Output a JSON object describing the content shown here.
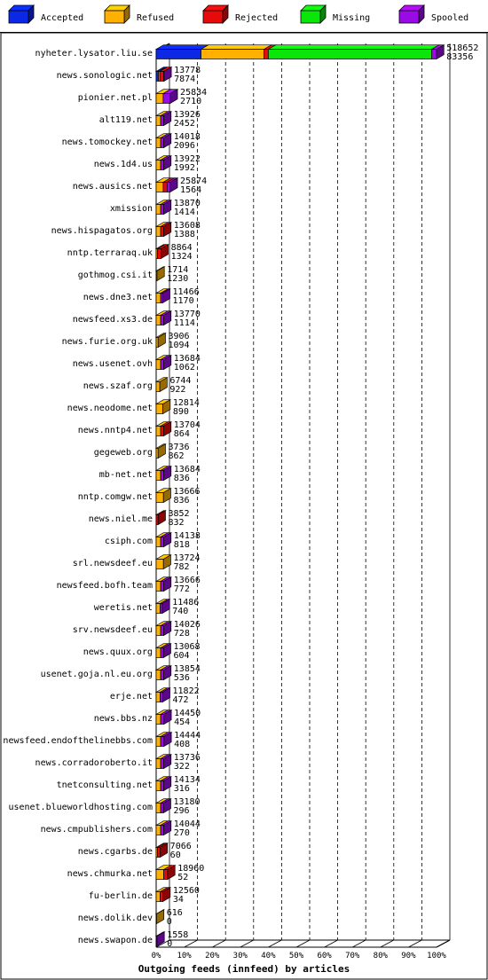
{
  "chart_data": {
    "type": "bar",
    "orientation": "horizontal-stacked",
    "title": "",
    "xlabel": "Outgoing feeds (innfeed) by articles",
    "ylabel": "",
    "xticks": [
      "0%",
      "10%",
      "20%",
      "30%",
      "40%",
      "50%",
      "60%",
      "70%",
      "80%",
      "90%",
      "100%"
    ],
    "xlim": [
      0,
      100
    ],
    "legend_position": "top",
    "grid": true,
    "series": [
      {
        "name": "Accepted",
        "color": "#0a28e6"
      },
      {
        "name": "Refused",
        "color": "#ffb000"
      },
      {
        "name": "Rejected",
        "color": "#e60a0a"
      },
      {
        "name": "Missing",
        "color": "#0ae60a"
      },
      {
        "name": "Spooled",
        "color": "#9a0ae6"
      }
    ],
    "rows": [
      {
        "label": "nyheter.lysator.liu.se",
        "total": "518652",
        "accepted": "83356",
        "pct": [
          16,
          22.5,
          1.5,
          58.3,
          1.7
        ]
      },
      {
        "label": "news.sonologic.net",
        "total": "13778",
        "accepted": "7874",
        "pct": [
          0.8,
          0.5,
          1.4,
          0,
          0.1
        ]
      },
      {
        "label": "pionier.net.pl",
        "total": "25834",
        "accepted": "2710",
        "pct": [
          0,
          2.5,
          0,
          0,
          2.5
        ]
      },
      {
        "label": "alt119.net",
        "total": "13926",
        "accepted": "2452",
        "pct": [
          0,
          1.6,
          0,
          0,
          1.1
        ]
      },
      {
        "label": "news.tomockey.net",
        "total": "14018",
        "accepted": "2096",
        "pct": [
          0,
          1.6,
          0,
          0,
          1.1
        ]
      },
      {
        "label": "news.1d4.us",
        "total": "13922",
        "accepted": "1992",
        "pct": [
          0,
          1.6,
          0,
          0,
          1.1
        ]
      },
      {
        "label": "news.ausics.net",
        "total": "25874",
        "accepted": "1564",
        "pct": [
          0,
          2.5,
          1.4,
          0,
          1.1
        ]
      },
      {
        "label": "xmission",
        "total": "13870",
        "accepted": "1414",
        "pct": [
          0,
          1.6,
          0,
          0,
          1.1
        ]
      },
      {
        "label": "news.hispagatos.org",
        "total": "13608",
        "accepted": "1388",
        "pct": [
          0,
          1.6,
          1.1,
          0,
          0
        ]
      },
      {
        "label": "nntp.terraraq.uk",
        "total": "8864",
        "accepted": "1324",
        "pct": [
          0,
          0.5,
          1.2,
          0,
          0
        ]
      },
      {
        "label": "gothmog.csi.it",
        "total": "1714",
        "accepted": "1230",
        "pct": [
          0,
          0.3,
          0,
          0,
          0
        ]
      },
      {
        "label": "news.dne3.net",
        "total": "11466",
        "accepted": "1170",
        "pct": [
          0,
          1.6,
          0,
          0,
          0.7
        ]
      },
      {
        "label": "newsfeed.xs3.de",
        "total": "13770",
        "accepted": "1114",
        "pct": [
          0,
          1.6,
          0,
          0,
          1.1
        ]
      },
      {
        "label": "news.furie.org.uk",
        "total": "3906",
        "accepted": "1094",
        "pct": [
          0,
          0.7,
          0,
          0,
          0
        ]
      },
      {
        "label": "news.usenet.ovh",
        "total": "13684",
        "accepted": "1062",
        "pct": [
          0,
          1.6,
          0,
          0,
          1.1
        ]
      },
      {
        "label": "news.szaf.org",
        "total": "6744",
        "accepted": "922",
        "pct": [
          0,
          1.3,
          0,
          0,
          0
        ]
      },
      {
        "label": "news.neodome.net",
        "total": "12814",
        "accepted": "890",
        "pct": [
          0,
          2.4,
          0,
          0,
          0
        ]
      },
      {
        "label": "news.nntp4.net",
        "total": "13704",
        "accepted": "864",
        "pct": [
          0,
          1.6,
          1.1,
          0,
          0
        ]
      },
      {
        "label": "gegeweb.org",
        "total": "3736",
        "accepted": "862",
        "pct": [
          0,
          0.7,
          0,
          0,
          0
        ]
      },
      {
        "label": "mb-net.net",
        "total": "13684",
        "accepted": "836",
        "pct": [
          0,
          1.6,
          0,
          0,
          1.1
        ]
      },
      {
        "label": "nntp.comgw.net",
        "total": "13666",
        "accepted": "836",
        "pct": [
          0,
          2.6,
          0,
          0,
          0
        ]
      },
      {
        "label": "news.niel.me",
        "total": "3852",
        "accepted": "832",
        "pct": [
          0,
          0,
          0.7,
          0,
          0
        ]
      },
      {
        "label": "csiph.com",
        "total": "14138",
        "accepted": "818",
        "pct": [
          0,
          1.6,
          0,
          0,
          1.1
        ]
      },
      {
        "label": "srl.newsdeef.eu",
        "total": "13724",
        "accepted": "782",
        "pct": [
          0,
          2.6,
          0,
          0,
          0
        ]
      },
      {
        "label": "newsfeed.bofh.team",
        "total": "13666",
        "accepted": "772",
        "pct": [
          0,
          1.6,
          0,
          0,
          1.1
        ]
      },
      {
        "label": "weretis.net",
        "total": "11486",
        "accepted": "740",
        "pct": [
          0,
          1.4,
          0,
          0,
          0.8
        ]
      },
      {
        "label": "srv.newsdeef.eu",
        "total": "14026",
        "accepted": "728",
        "pct": [
          0,
          1.6,
          0,
          0,
          1.1
        ]
      },
      {
        "label": "news.quux.org",
        "total": "13068",
        "accepted": "604",
        "pct": [
          0,
          1.6,
          0,
          0,
          1.0
        ]
      },
      {
        "label": "usenet.goja.nl.eu.org",
        "total": "13854",
        "accepted": "536",
        "pct": [
          0,
          1.6,
          0,
          0,
          1.1
        ]
      },
      {
        "label": "erje.net",
        "total": "11822",
        "accepted": "472",
        "pct": [
          0,
          1.4,
          0,
          0,
          0.9
        ]
      },
      {
        "label": "news.bbs.nz",
        "total": "14450",
        "accepted": "454",
        "pct": [
          0,
          1.6,
          0,
          0,
          1.2
        ]
      },
      {
        "label": "newsfeed.endofthelinebbs.com",
        "total": "14444",
        "accepted": "408",
        "pct": [
          0,
          1.6,
          0,
          0,
          1.2
        ]
      },
      {
        "label": "news.corradoroberto.it",
        "total": "13736",
        "accepted": "322",
        "pct": [
          0,
          1.6,
          0,
          0,
          1.1
        ]
      },
      {
        "label": "tnetconsulting.net",
        "total": "14134",
        "accepted": "316",
        "pct": [
          0,
          1.6,
          0,
          0,
          1.1
        ]
      },
      {
        "label": "usenet.blueworldhosting.com",
        "total": "13180",
        "accepted": "296",
        "pct": [
          0,
          1.6,
          0,
          0,
          1.0
        ]
      },
      {
        "label": "news.cmpublishers.com",
        "total": "14044",
        "accepted": "270",
        "pct": [
          0,
          1.6,
          0,
          0,
          1.1
        ]
      },
      {
        "label": "news.cgarbs.de",
        "total": "7066",
        "accepted": "60",
        "pct": [
          0,
          0.5,
          0.9,
          0,
          0
        ]
      },
      {
        "label": "news.chmurka.net",
        "total": "18960",
        "accepted": "52",
        "pct": [
          0,
          2.7,
          1.4,
          0,
          0
        ]
      },
      {
        "label": "fu-berlin.de",
        "total": "12560",
        "accepted": "34",
        "pct": [
          0,
          1.4,
          1.0,
          0,
          0
        ]
      },
      {
        "label": "news.dolik.dev",
        "total": "616",
        "accepted": "0",
        "pct": [
          0,
          0.15,
          0,
          0,
          0
        ]
      },
      {
        "label": "news.swapon.de",
        "total": "1558",
        "accepted": "0",
        "pct": [
          0,
          0,
          0,
          0,
          0.3
        ]
      }
    ]
  }
}
